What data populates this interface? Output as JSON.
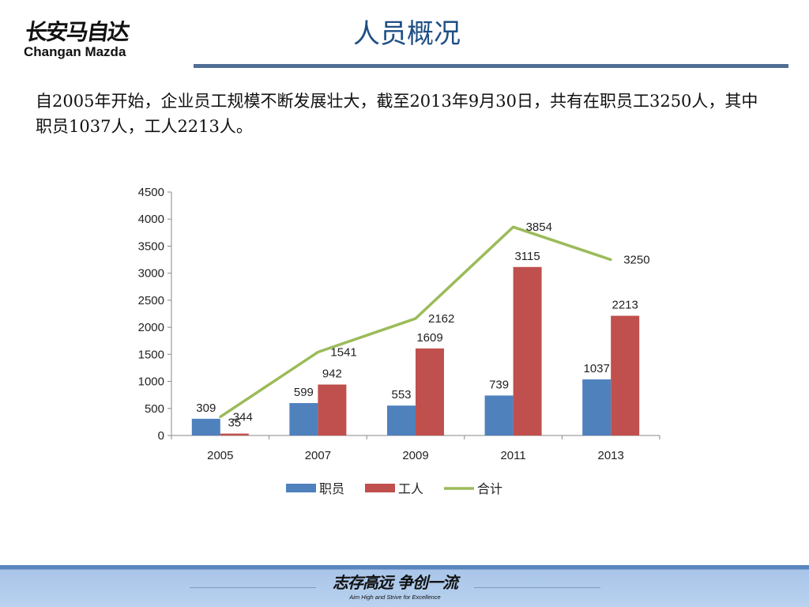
{
  "header": {
    "logo_cn": "长安马自达",
    "logo_en": "Changan Mazda",
    "title": "人员概况"
  },
  "intro": "自2005年开始，企业员工规模不断发展壮大，截至2013年9月30日，共有在职员工3250人，其中职员1037人，工人2213人。",
  "footer": {
    "slogan_cn": "志存高远  争创一流",
    "slogan_en": "Aim High and Strive for Excellence"
  },
  "colors": {
    "staff": "#4f81bd",
    "workers": "#c0504d",
    "total": "#9bbb59",
    "accent": "#1f4f85"
  },
  "chart_data": {
    "type": "bar",
    "title": "",
    "categories": [
      "2005",
      "2007",
      "2009",
      "2011",
      "2013"
    ],
    "series": [
      {
        "name": "职员",
        "kind": "bar",
        "values": [
          309,
          599,
          553,
          739,
          1037
        ]
      },
      {
        "name": "工人",
        "kind": "bar",
        "values": [
          35,
          942,
          1609,
          3115,
          2213
        ]
      },
      {
        "name": "合计",
        "kind": "line",
        "values": [
          344,
          1541,
          2162,
          3854,
          3250
        ]
      }
    ],
    "ylim": [
      0,
      4500
    ],
    "yticks": [
      0,
      500,
      1000,
      1500,
      2000,
      2500,
      3000,
      3500,
      4000,
      4500
    ],
    "grid": false,
    "legend_position": "bottom"
  }
}
